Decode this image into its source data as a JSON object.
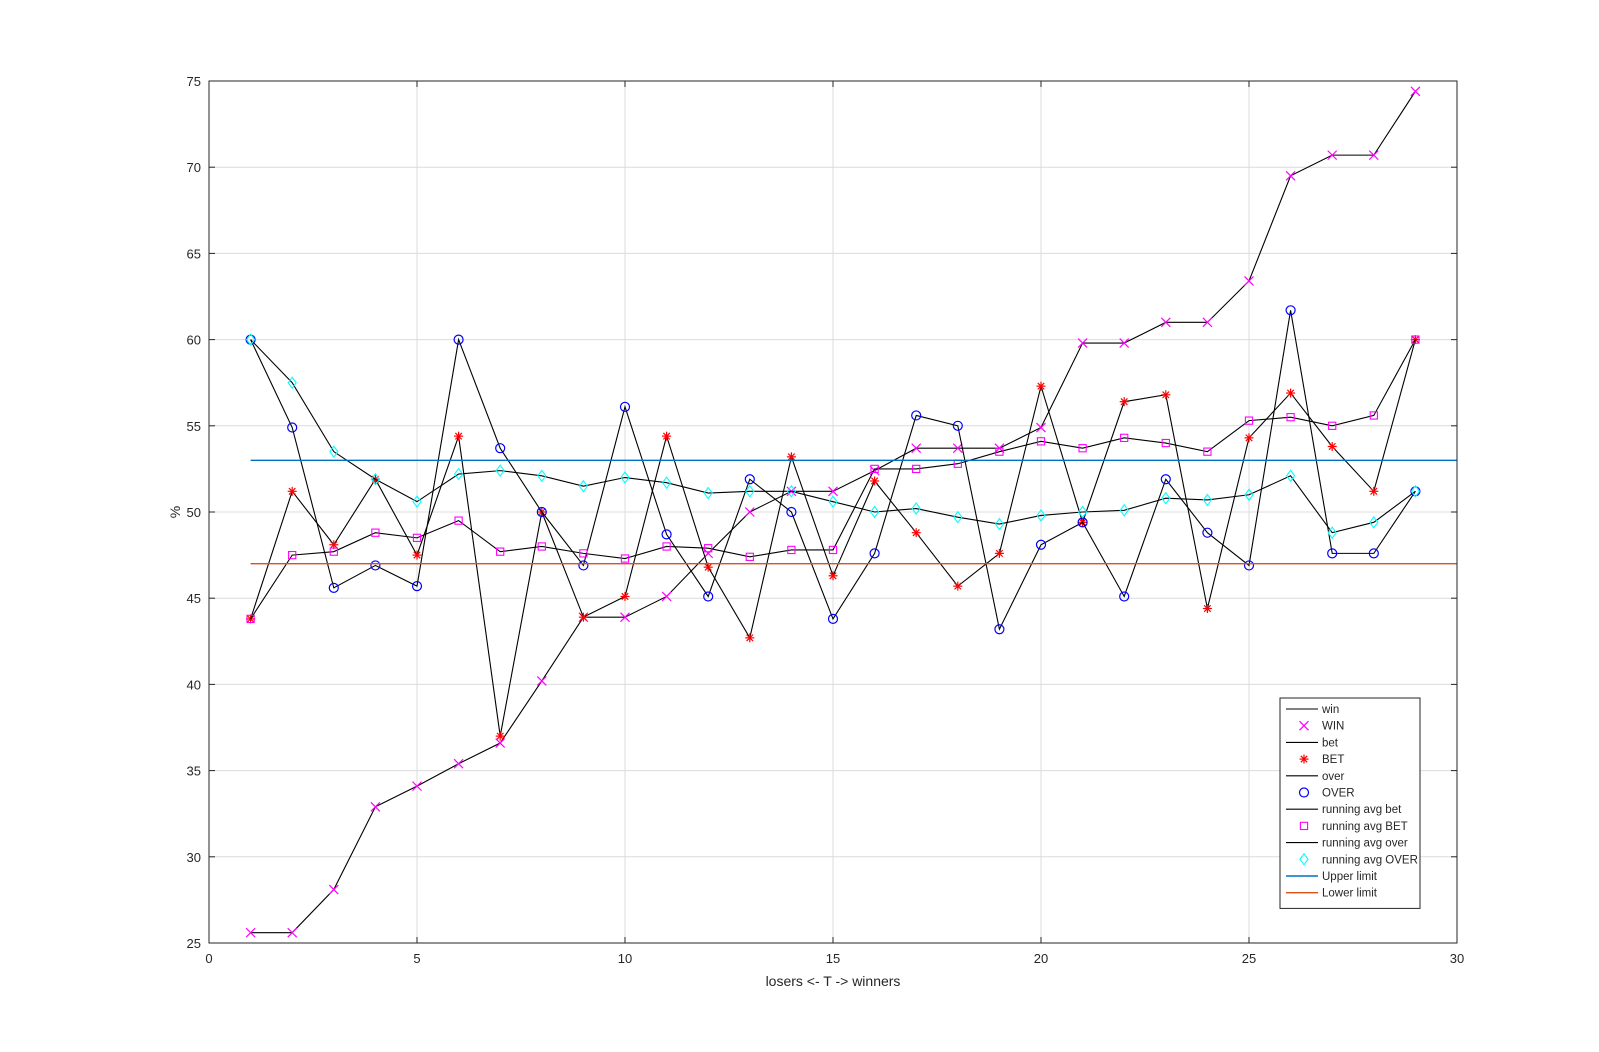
{
  "chart_data": {
    "type": "line",
    "xlabel": "losers <- T -> winners",
    "ylabel": "%",
    "xlim": [
      0,
      30
    ],
    "ylim": [
      25,
      75
    ],
    "xticks": [
      0,
      5,
      10,
      15,
      20,
      25,
      30
    ],
    "yticks": [
      25,
      30,
      35,
      40,
      45,
      50,
      55,
      60,
      65,
      70,
      75
    ],
    "grid": true,
    "legend_position": "bottom-right",
    "x": [
      1,
      2,
      3,
      4,
      5,
      6,
      7,
      8,
      9,
      10,
      11,
      12,
      13,
      14,
      15,
      16,
      17,
      18,
      19,
      20,
      21,
      22,
      23,
      24,
      25,
      26,
      27,
      28,
      29
    ],
    "series": [
      {
        "name": "win",
        "style": "line",
        "color": "#000000",
        "values": [
          25.6,
          25.6,
          28.1,
          32.9,
          34.1,
          35.4,
          36.6,
          40.2,
          43.9,
          43.9,
          45.1,
          47.6,
          50.0,
          51.2,
          51.2,
          52.4,
          53.7,
          53.7,
          53.7,
          54.9,
          59.8,
          59.8,
          61.0,
          61.0,
          63.4,
          69.5,
          70.7,
          70.7,
          74.4
        ]
      },
      {
        "name": "WIN",
        "style": "marker",
        "marker": "x",
        "color": "#ff00ff",
        "values": [
          25.6,
          25.6,
          28.1,
          32.9,
          34.1,
          35.4,
          36.6,
          40.2,
          43.9,
          43.9,
          45.1,
          47.6,
          50.0,
          51.2,
          51.2,
          52.4,
          53.7,
          53.7,
          53.7,
          54.9,
          59.8,
          59.8,
          61.0,
          61.0,
          63.4,
          69.5,
          70.7,
          70.7,
          74.4
        ]
      },
      {
        "name": "bet",
        "style": "line",
        "color": "#000000",
        "values": [
          43.8,
          51.2,
          48.1,
          51.9,
          47.5,
          54.4,
          37.0,
          50.0,
          43.9,
          45.1,
          54.4,
          46.8,
          42.7,
          53.2,
          46.3,
          51.8,
          48.8,
          45.7,
          47.6,
          57.3,
          49.4,
          56.4,
          56.8,
          44.4,
          54.3,
          56.9,
          53.8,
          51.2,
          60.0
        ]
      },
      {
        "name": "BET",
        "style": "marker",
        "marker": "*",
        "color": "#ff0000",
        "values": [
          43.8,
          51.2,
          48.1,
          51.9,
          47.5,
          54.4,
          37.0,
          50.0,
          43.9,
          45.1,
          54.4,
          46.8,
          42.7,
          53.2,
          46.3,
          51.8,
          48.8,
          45.7,
          47.6,
          57.3,
          49.4,
          56.4,
          56.8,
          44.4,
          54.3,
          56.9,
          53.8,
          51.2,
          60.0
        ]
      },
      {
        "name": "over",
        "style": "line",
        "color": "#000000",
        "values": [
          60.0,
          54.9,
          45.6,
          46.9,
          45.7,
          60.0,
          53.7,
          50.0,
          46.9,
          56.1,
          48.7,
          45.1,
          51.9,
          50.0,
          43.8,
          47.6,
          55.6,
          55.0,
          43.2,
          48.1,
          49.4,
          45.1,
          51.9,
          48.8,
          46.9,
          61.7,
          47.6,
          47.6,
          51.2
        ]
      },
      {
        "name": "OVER",
        "style": "marker",
        "marker": "o",
        "color": "#0000ff",
        "values": [
          60.0,
          54.9,
          45.6,
          46.9,
          45.7,
          60.0,
          53.7,
          50.0,
          46.9,
          56.1,
          48.7,
          45.1,
          51.9,
          50.0,
          43.8,
          47.6,
          55.6,
          55.0,
          43.2,
          48.1,
          49.4,
          45.1,
          51.9,
          48.8,
          46.9,
          61.7,
          47.6,
          47.6,
          51.2
        ]
      },
      {
        "name": "running avg bet",
        "style": "line",
        "color": "#000000",
        "values": [
          43.8,
          47.5,
          47.7,
          48.8,
          48.5,
          49.5,
          47.7,
          48.0,
          47.6,
          47.3,
          48.0,
          47.9,
          47.4,
          47.8,
          47.8,
          52.5,
          52.5,
          52.8,
          53.5,
          54.1,
          53.7,
          54.3,
          54.0,
          53.5,
          55.3,
          55.5,
          55.0,
          55.6,
          60.0
        ]
      },
      {
        "name": "running avg BET",
        "style": "marker",
        "marker": "square",
        "color": "#ff00ff",
        "values": [
          43.8,
          47.5,
          47.7,
          48.8,
          48.5,
          49.5,
          47.7,
          48.0,
          47.6,
          47.3,
          48.0,
          47.9,
          47.4,
          47.8,
          47.8,
          52.5,
          52.5,
          52.8,
          53.5,
          54.1,
          53.7,
          54.3,
          54.0,
          53.5,
          55.3,
          55.5,
          55.0,
          55.6,
          60.0
        ]
      },
      {
        "name": "running avg over",
        "style": "line",
        "color": "#000000",
        "values": [
          60.0,
          57.5,
          53.5,
          51.9,
          50.6,
          52.2,
          52.4,
          52.1,
          51.5,
          52.0,
          51.7,
          51.1,
          51.2,
          51.2,
          50.6,
          50.0,
          50.2,
          49.7,
          49.3,
          49.8,
          50.0,
          50.1,
          50.8,
          50.7,
          51.0,
          52.1,
          48.8,
          49.4,
          51.2
        ]
      },
      {
        "name": "running avg OVER",
        "style": "marker",
        "marker": "diamond",
        "color": "#00ffff",
        "values": [
          60.0,
          57.5,
          53.5,
          51.9,
          50.6,
          52.2,
          52.4,
          52.1,
          51.5,
          52.0,
          51.7,
          51.1,
          51.2,
          51.2,
          50.6,
          50.0,
          50.2,
          49.7,
          49.3,
          49.8,
          50.0,
          50.1,
          50.8,
          50.7,
          51.0,
          52.1,
          48.8,
          49.4,
          51.2
        ]
      },
      {
        "name": "Upper limit",
        "style": "hline",
        "color": "#0072bd",
        "x_range": [
          1,
          30
        ],
        "value": 53
      },
      {
        "name": "Lower limit",
        "style": "hline",
        "color": "#d95319",
        "x_range": [
          1,
          30
        ],
        "value": 47
      }
    ]
  }
}
